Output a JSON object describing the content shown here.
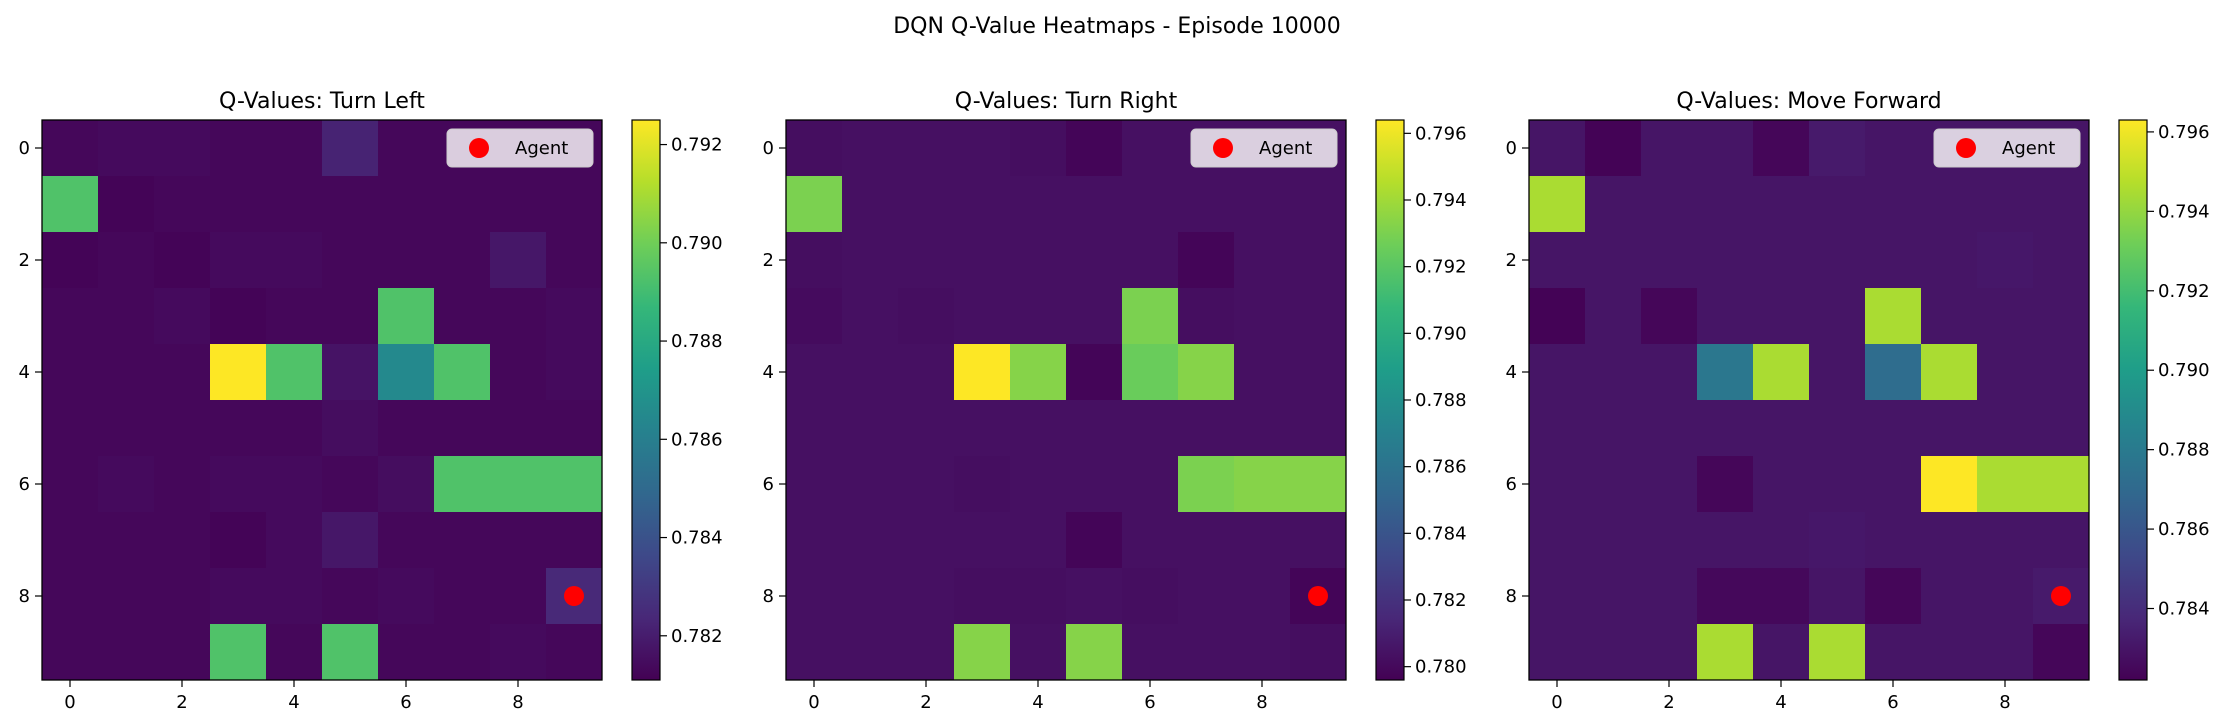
{
  "figure": {
    "suptitle": "DQN Q-Value Heatmaps - Episode 10000"
  },
  "colormap": {
    "name": "viridis",
    "stops": [
      "#440154",
      "#482878",
      "#3e4989",
      "#31688e",
      "#26828e",
      "#1f9e89",
      "#35b779",
      "#6ece58",
      "#b5de2b",
      "#fde725"
    ]
  },
  "marker_color": "#ff0000",
  "chart_data": [
    {
      "type": "heatmap",
      "title": "Q-Values: Turn Left",
      "x": [
        0,
        1,
        2,
        3,
        4,
        5,
        6,
        7,
        8,
        9
      ],
      "y": [
        0,
        1,
        2,
        3,
        4,
        5,
        6,
        7,
        8,
        9
      ],
      "xticks": [
        "0",
        "2",
        "4",
        "6",
        "8"
      ],
      "yticks": [
        "0",
        "2",
        "4",
        "6",
        "8"
      ],
      "vmin": 0.7811,
      "vmax": 0.7925,
      "colorbar_ticks": [
        "0.782",
        "0.784",
        "0.786",
        "0.788",
        "0.790",
        "0.792"
      ],
      "legend": {
        "label": "Agent",
        "loc": "upper right"
      },
      "agent": {
        "x": 9,
        "y": 8
      },
      "values": [
        [
          0.7813,
          0.7814,
          0.7814,
          0.7813,
          0.7813,
          0.7822,
          0.7813,
          0.7813,
          0.7813,
          0.7813
        ],
        [
          0.7893,
          0.7812,
          0.7813,
          0.7813,
          0.7813,
          0.7813,
          0.7813,
          0.7813,
          0.7813,
          0.7813
        ],
        [
          0.7812,
          0.7813,
          0.7812,
          0.7814,
          0.7814,
          0.7813,
          0.7813,
          0.7813,
          0.7818,
          0.7813
        ],
        [
          0.7813,
          0.7813,
          0.7814,
          0.7812,
          0.7813,
          0.7813,
          0.7893,
          0.7813,
          0.7813,
          0.7814
        ],
        [
          0.7813,
          0.7813,
          0.7813,
          0.7925,
          0.7893,
          0.7817,
          0.7865,
          0.7893,
          0.7813,
          0.7814
        ],
        [
          0.7813,
          0.7813,
          0.7813,
          0.7813,
          0.7813,
          0.7815,
          0.7813,
          0.7813,
          0.7813,
          0.7813
        ],
        [
          0.7813,
          0.7814,
          0.7813,
          0.7814,
          0.7814,
          0.7813,
          0.7815,
          0.7893,
          0.7893,
          0.7893
        ],
        [
          0.7813,
          0.7813,
          0.7813,
          0.7812,
          0.7814,
          0.7818,
          0.7813,
          0.7813,
          0.7813,
          0.7813
        ],
        [
          0.7813,
          0.7813,
          0.7813,
          0.7814,
          0.7814,
          0.7813,
          0.7814,
          0.7813,
          0.7813,
          0.7824
        ],
        [
          0.7813,
          0.7813,
          0.7813,
          0.7893,
          0.7813,
          0.7893,
          0.7813,
          0.7813,
          0.7814,
          0.7813
        ]
      ]
    },
    {
      "type": "heatmap",
      "title": "Q-Values: Turn Right",
      "x": [
        0,
        1,
        2,
        3,
        4,
        5,
        6,
        7,
        8,
        9
      ],
      "y": [
        0,
        1,
        2,
        3,
        4,
        5,
        6,
        7,
        8,
        9
      ],
      "xticks": [
        "0",
        "2",
        "4",
        "6",
        "8"
      ],
      "yticks": [
        "0",
        "2",
        "4",
        "6",
        "8"
      ],
      "vmin": 0.7796,
      "vmax": 0.7964,
      "colorbar_ticks": [
        "0.780",
        "0.782",
        "0.784",
        "0.786",
        "0.788",
        "0.790",
        "0.792",
        "0.794",
        "0.796"
      ],
      "legend": {
        "label": "Agent",
        "loc": "upper right"
      },
      "agent": {
        "x": 9,
        "y": 8
      },
      "values": [
        [
          0.7802,
          0.7803,
          0.7803,
          0.7803,
          0.7802,
          0.7798,
          0.7803,
          0.7803,
          0.7803,
          0.7803
        ],
        [
          0.793,
          0.7803,
          0.7803,
          0.7803,
          0.7803,
          0.7803,
          0.7803,
          0.7803,
          0.7803,
          0.7803
        ],
        [
          0.7802,
          0.7803,
          0.7803,
          0.7803,
          0.7803,
          0.7803,
          0.7803,
          0.7798,
          0.7803,
          0.7803
        ],
        [
          0.7801,
          0.7803,
          0.7802,
          0.7803,
          0.7803,
          0.7803,
          0.793,
          0.7802,
          0.7803,
          0.7803
        ],
        [
          0.7803,
          0.7803,
          0.7803,
          0.7964,
          0.7933,
          0.7798,
          0.7925,
          0.7933,
          0.7803,
          0.7803
        ],
        [
          0.7803,
          0.7803,
          0.7803,
          0.7803,
          0.7803,
          0.7803,
          0.7803,
          0.7803,
          0.7803,
          0.7803
        ],
        [
          0.7803,
          0.7803,
          0.7803,
          0.7802,
          0.7803,
          0.7803,
          0.7803,
          0.793,
          0.7933,
          0.7933
        ],
        [
          0.7803,
          0.7803,
          0.7803,
          0.7803,
          0.7803,
          0.7798,
          0.7803,
          0.7803,
          0.7803,
          0.7803
        ],
        [
          0.7803,
          0.7803,
          0.7803,
          0.7802,
          0.7802,
          0.7803,
          0.7802,
          0.7803,
          0.7803,
          0.7798
        ],
        [
          0.7803,
          0.7803,
          0.7803,
          0.7933,
          0.7803,
          0.7933,
          0.7803,
          0.7803,
          0.7803,
          0.7802
        ]
      ]
    },
    {
      "type": "heatmap",
      "title": "Q-Values: Move Forward",
      "x": [
        0,
        1,
        2,
        3,
        4,
        5,
        6,
        7,
        8,
        9
      ],
      "y": [
        0,
        1,
        2,
        3,
        4,
        5,
        6,
        7,
        8,
        9
      ],
      "xticks": [
        "0",
        "2",
        "4",
        "6",
        "8"
      ],
      "yticks": [
        "0",
        "2",
        "4",
        "6",
        "8"
      ],
      "vmin": 0.7822,
      "vmax": 0.7963,
      "colorbar_ticks": [
        "0.784",
        "0.786",
        "0.788",
        "0.790",
        "0.792",
        "0.794",
        "0.796"
      ],
      "legend": {
        "label": "Agent",
        "loc": "upper right"
      },
      "agent": {
        "x": 9,
        "y": 8
      },
      "values": [
        [
          0.783,
          0.7823,
          0.783,
          0.783,
          0.7824,
          0.7832,
          0.783,
          0.783,
          0.783,
          0.783
        ],
        [
          0.7945,
          0.783,
          0.783,
          0.783,
          0.783,
          0.783,
          0.783,
          0.783,
          0.783,
          0.783
        ],
        [
          0.783,
          0.783,
          0.783,
          0.783,
          0.783,
          0.783,
          0.783,
          0.783,
          0.7831,
          0.783
        ],
        [
          0.7823,
          0.783,
          0.7824,
          0.783,
          0.783,
          0.783,
          0.7945,
          0.783,
          0.783,
          0.783
        ],
        [
          0.783,
          0.783,
          0.783,
          0.7878,
          0.7945,
          0.783,
          0.7872,
          0.7945,
          0.783,
          0.783
        ],
        [
          0.783,
          0.783,
          0.783,
          0.783,
          0.783,
          0.783,
          0.783,
          0.783,
          0.783,
          0.783
        ],
        [
          0.783,
          0.783,
          0.783,
          0.7824,
          0.783,
          0.783,
          0.783,
          0.7963,
          0.7945,
          0.7945
        ],
        [
          0.783,
          0.783,
          0.783,
          0.783,
          0.783,
          0.7831,
          0.783,
          0.783,
          0.783,
          0.783
        ],
        [
          0.783,
          0.783,
          0.783,
          0.7825,
          0.7825,
          0.783,
          0.7824,
          0.783,
          0.783,
          0.7832
        ],
        [
          0.783,
          0.783,
          0.783,
          0.7945,
          0.783,
          0.7945,
          0.783,
          0.783,
          0.783,
          0.7824
        ]
      ]
    }
  ]
}
